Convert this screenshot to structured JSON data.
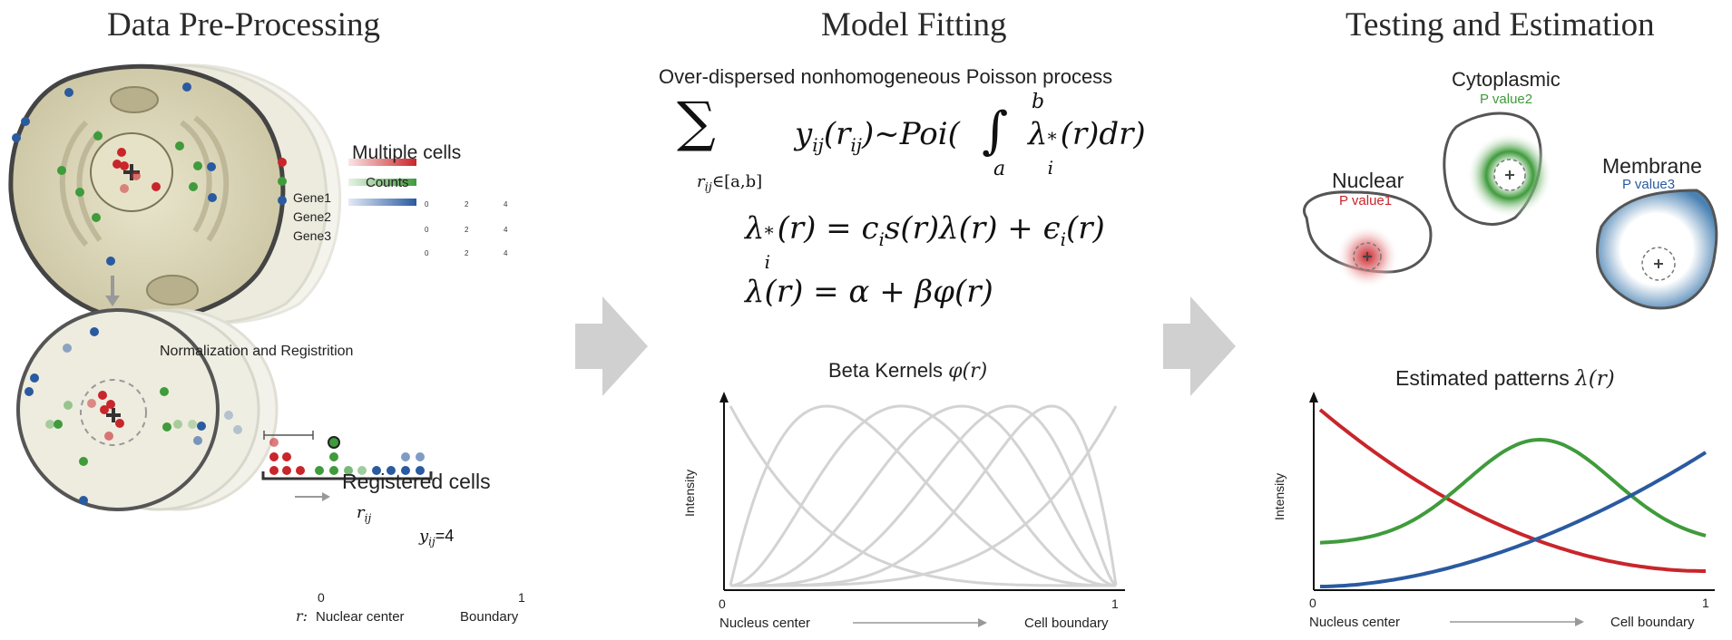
{
  "panels": {
    "preprocessing": {
      "title": "Data Pre-Processing",
      "multiple_cells_label": "Multiple cells",
      "counts_label": "Counts",
      "legend": [
        {
          "name": "Gene1",
          "color": "#c9252b"
        },
        {
          "name": "Gene2",
          "color": "#3f9b3b"
        },
        {
          "name": "Gene3",
          "color": "#2a5aa0"
        }
      ],
      "counts_scale_ticks": [
        "0",
        "2",
        "4"
      ],
      "arrow_label": "Normalization and Registrition",
      "registered_label": "Registered cells",
      "rij_label": "r",
      "rij_sub": "ij",
      "yij_label": "y",
      "yij_sub": "ij",
      "yij_value": "=4",
      "axis_start": "0",
      "axis_end": "1",
      "r_prefix": "r:",
      "nuclear_center": "Nuclear center",
      "boundary": "Boundary"
    },
    "model": {
      "title": "Model Fitting",
      "process_label": "Over-dispersed nonhomogeneous Poisson process",
      "eq1_lhs": "y",
      "eq1_sub": "ij",
      "eq1_arg": "(r",
      "eq1_arg_sub": "ij",
      "eq1_rest": ")~Poi(",
      "eq1_sum_sub": "r",
      "eq1_sum_sub2": "ij",
      "eq1_sum_range": "∈[a,b]",
      "eq1_int_upper": "b",
      "eq1_int_lower": "a",
      "eq1_integrand": "λ",
      "eq1_integrand_sup": "*",
      "eq1_integrand_sub": "i",
      "eq1_tail": "(r)dr)",
      "eq2_lhs": "λ",
      "eq2_lhs_sup": "*",
      "eq2_lhs_sub": "i",
      "eq2_a": "(r) = c",
      "eq2_a_sub": "i",
      "eq2_b": "s(r)λ(r) + ϵ",
      "eq2_b_sub": "i",
      "eq2_c": "(r)",
      "eq3": "λ(r)  = α + βφ(r)",
      "kernels_label": "Beta Kernels",
      "kernels_symbol": "φ(r)",
      "y_axis": "Intensity",
      "x_start": "0",
      "x_end": "1",
      "x_left": "Nucleus center",
      "x_right": "Cell boundary"
    },
    "testing": {
      "title": "Testing and Estimation",
      "cells": [
        {
          "name": "Nuclear",
          "pvalue": "P value1",
          "color": "#c9252b"
        },
        {
          "name": "Cytoplasmic",
          "pvalue": "P value2",
          "color": "#3f9b3b"
        },
        {
          "name": "Membrane",
          "pvalue": "P value3",
          "color": "#2a5aa0"
        }
      ],
      "estimated_label": "Estimated patterns",
      "estimated_symbol": "λ(r)",
      "y_axis": "Intensity",
      "x_start": "0",
      "x_end": "1",
      "x_left": "Nucleus center",
      "x_right": "Cell boundary"
    }
  },
  "colors": {
    "red": "#c9252b",
    "green": "#3f9b3b",
    "blue": "#2a5aa0",
    "kernel": "#d3d3d3",
    "big_arrow": "#d0d0d0"
  }
}
